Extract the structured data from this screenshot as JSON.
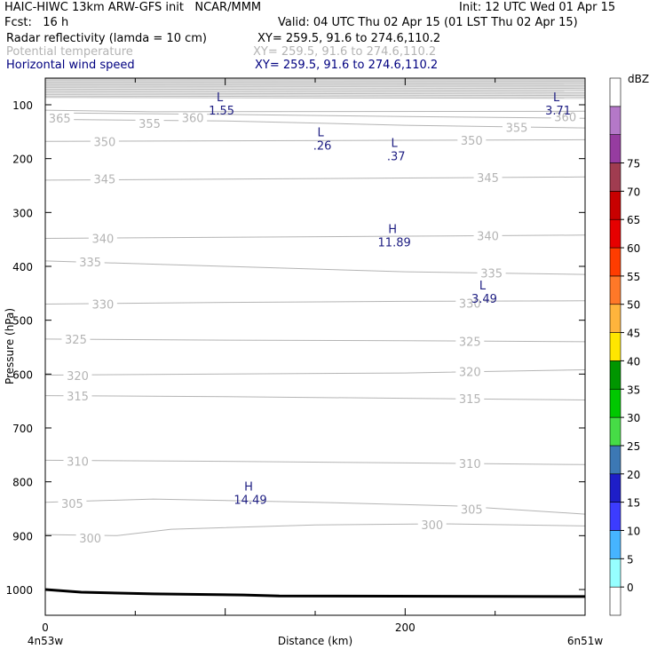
{
  "header": {
    "title_left": "HAIC-HIWC 13km ARW-GFS init   NCAR/MMM",
    "init": "Init: 12 UTC Wed 01 Apr 15",
    "fcst": "Fcst:   16 h",
    "valid": "Valid: 04 UTC Thu 02 Apr 15 (01 LST Thu 02 Apr 15)",
    "fields": [
      {
        "name": "Radar reflectivity (lamda = 10 cm)",
        "xy": "XY= 259.5, 91.6 to 274.6,110.2",
        "color": "#000000"
      },
      {
        "name": "Potential temperature",
        "xy": "XY= 259.5, 91.6 to 274.6,110.2",
        "color": "#b4b4b4"
      },
      {
        "name": "Horizontal wind speed",
        "xy": "XY= 259.5, 91.6 to 274.6,110.2",
        "color": "#000080"
      }
    ]
  },
  "chart_data": {
    "type": "contour-cross-section",
    "ylabel": "Pressure (hPa)",
    "xlabel": "Distance (km)",
    "y_ticks": [
      100,
      200,
      300,
      400,
      500,
      600,
      700,
      800,
      900,
      1000
    ],
    "x_ticks": [
      0,
      200
    ],
    "xlim": [
      0,
      300
    ],
    "ylim_top": 55,
    "ylim_bottom": 1048,
    "x_start_label": "4n53w",
    "x_end_label": "6n51w",
    "theta_contours": [
      {
        "label": "300",
        "points": [
          [
            0,
            898
          ],
          [
            40,
            900
          ],
          [
            70,
            888
          ],
          [
            150,
            880
          ],
          [
            220,
            878
          ],
          [
            300,
            882
          ]
        ],
        "labels_at": [
          [
            25,
            904
          ],
          [
            215,
            880
          ]
        ]
      },
      {
        "label": "305",
        "points": [
          [
            0,
            838
          ],
          [
            60,
            832
          ],
          [
            150,
            838
          ],
          [
            230,
            845
          ],
          [
            300,
            860
          ]
        ],
        "labels_at": [
          [
            15,
            840
          ],
          [
            237,
            851
          ]
        ]
      },
      {
        "label": "310",
        "points": [
          [
            0,
            760
          ],
          [
            100,
            762
          ],
          [
            200,
            765
          ],
          [
            300,
            768
          ]
        ],
        "labels_at": [
          [
            18,
            762
          ],
          [
            236,
            766
          ]
        ]
      },
      {
        "label": "315",
        "points": [
          [
            0,
            640
          ],
          [
            100,
            642
          ],
          [
            200,
            645
          ],
          [
            300,
            648
          ]
        ],
        "labels_at": [
          [
            18,
            641
          ],
          [
            236,
            646
          ]
        ]
      },
      {
        "label": "320",
        "points": [
          [
            0,
            602
          ],
          [
            100,
            600
          ],
          [
            200,
            598
          ],
          [
            300,
            592
          ]
        ],
        "labels_at": [
          [
            18,
            603
          ],
          [
            236,
            595
          ]
        ]
      },
      {
        "label": "325",
        "points": [
          [
            0,
            535
          ],
          [
            100,
            537
          ],
          [
            200,
            538
          ],
          [
            300,
            540
          ]
        ],
        "labels_at": [
          [
            17,
            535
          ],
          [
            236,
            539
          ]
        ]
      },
      {
        "label": "330",
        "points": [
          [
            0,
            470
          ],
          [
            100,
            467
          ],
          [
            200,
            465
          ],
          [
            300,
            464
          ]
        ],
        "labels_at": [
          [
            32,
            470
          ],
          [
            236,
            468
          ]
        ]
      },
      {
        "label": "335",
        "points": [
          [
            0,
            390
          ],
          [
            100,
            400
          ],
          [
            200,
            410
          ],
          [
            300,
            415
          ]
        ],
        "labels_at": [
          [
            25,
            392
          ],
          [
            248,
            412
          ]
        ]
      },
      {
        "label": "340",
        "points": [
          [
            0,
            348
          ],
          [
            100,
            346
          ],
          [
            200,
            344
          ],
          [
            300,
            342
          ]
        ],
        "labels_at": [
          [
            32,
            348
          ],
          [
            246,
            343
          ]
        ]
      },
      {
        "label": "345",
        "points": [
          [
            0,
            240
          ],
          [
            100,
            238
          ],
          [
            200,
            236
          ],
          [
            300,
            234
          ]
        ],
        "labels_at": [
          [
            33,
            238
          ],
          [
            246,
            235
          ]
        ]
      },
      {
        "label": "350",
        "points": [
          [
            0,
            168
          ],
          [
            100,
            167
          ],
          [
            200,
            166
          ],
          [
            300,
            165
          ]
        ],
        "labels_at": [
          [
            33,
            168
          ],
          [
            237,
            166
          ]
        ]
      },
      {
        "label": "355",
        "points": [
          [
            0,
            127
          ],
          [
            100,
            130
          ],
          [
            200,
            138
          ],
          [
            300,
            143
          ]
        ],
        "labels_at": [
          [
            58,
            135
          ],
          [
            262,
            142
          ]
        ]
      },
      {
        "label": "360",
        "points": [
          [
            0,
            115
          ],
          [
            100,
            118
          ],
          [
            200,
            122
          ],
          [
            300,
            125
          ]
        ],
        "labels_at": [
          [
            82,
            124
          ],
          [
            289,
            122
          ]
        ]
      },
      {
        "label": "365",
        "points": [
          [
            0,
            110
          ],
          [
            60,
            113
          ],
          [
            300,
            112
          ]
        ],
        "labels_at": [
          [
            8,
            125
          ]
        ]
      }
    ],
    "wind_extrema": [
      {
        "type": "L",
        "value": "1.55",
        "x": 97,
        "p": 85
      },
      {
        "type": "L",
        "value": "3.71",
        "x": 284,
        "p": 85
      },
      {
        "type": "L",
        "value": ".26",
        "x": 153,
        "p": 150
      },
      {
        "type": "L",
        "value": ".37",
        "x": 194,
        "p": 170
      },
      {
        "type": "H",
        "value": "11.89",
        "x": 193,
        "p": 330
      },
      {
        "type": "L",
        "value": "3.49",
        "x": 243,
        "p": 435
      },
      {
        "type": "H",
        "value": "14.49",
        "x": 113,
        "p": 808
      }
    ],
    "terrain": [
      [
        0,
        1000
      ],
      [
        20,
        1005
      ],
      [
        60,
        1008
      ],
      [
        110,
        1010
      ],
      [
        130,
        1012
      ],
      [
        300,
        1013
      ]
    ],
    "colorbar": {
      "units": "dBZ",
      "levels": [
        "0",
        "5",
        "10",
        "15",
        "20",
        "25",
        "30",
        "35",
        "40",
        "45",
        "50",
        "55",
        "60",
        "65",
        "70",
        "75"
      ],
      "colors": [
        "#ffffff",
        "#96ffff",
        "#46b4ff",
        "#3c3cff",
        "#1e1ec8",
        "#3c78b4",
        "#46dc46",
        "#00c800",
        "#009600",
        "#ffe600",
        "#ffb43c",
        "#ff7828",
        "#ff3c00",
        "#e60000",
        "#c80000",
        "#a03c50",
        "#963ca0",
        "#b478c8",
        "#ffffff"
      ]
    },
    "theta_color": "#b4b4b4",
    "wind_color": "#1e1e82"
  }
}
